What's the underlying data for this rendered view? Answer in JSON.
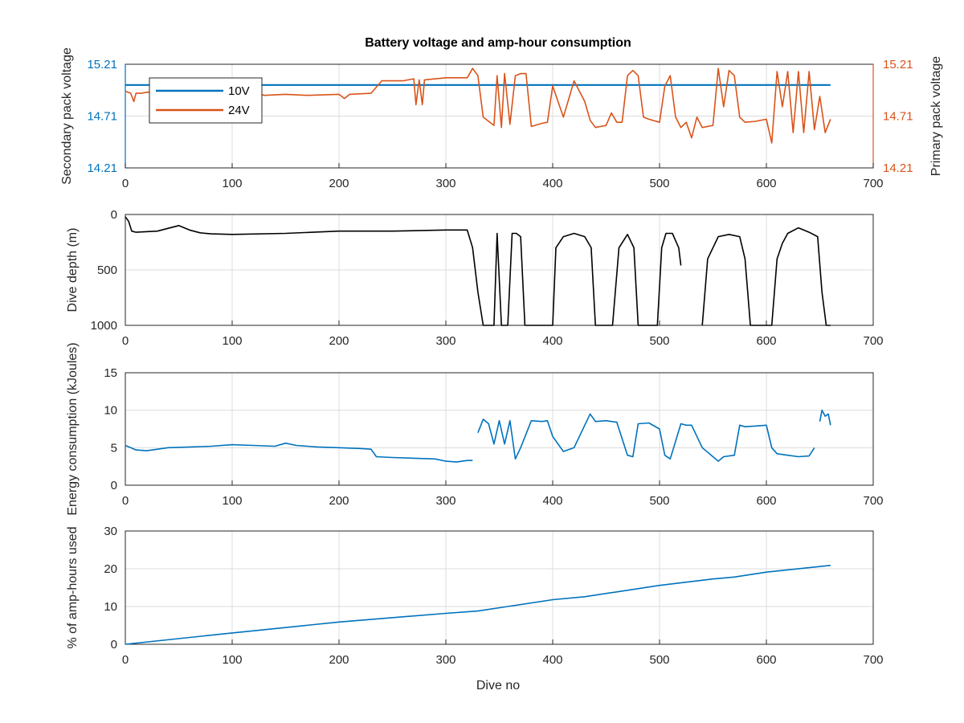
{
  "figure": {
    "title": "Battery voltage and amp-hour consumption",
    "xlabel": "Dive no"
  },
  "colors": {
    "blue": "#0072BD",
    "orange": "#D95319",
    "black": "#000000",
    "axis": "#262626",
    "grid": "#dcdcdc"
  },
  "chart_data": [
    {
      "type": "line",
      "title": "Battery voltage and amp-hour consumption",
      "xlabel": "",
      "ylabel_left": "Secondary pack voltage",
      "ylabel_right": "Primary pack voltage",
      "xlim": [
        0,
        700
      ],
      "ylim": [
        14.21,
        15.21
      ],
      "xticks": [
        0,
        100,
        200,
        300,
        400,
        500,
        600,
        700
      ],
      "yticks": [
        14.21,
        14.71,
        15.21
      ],
      "grid": true,
      "legend": "top-left",
      "series": [
        {
          "name": "10V",
          "axis": "left",
          "color": "#0072BD",
          "x": [
            0,
            660
          ],
          "y": [
            15.01,
            15.01
          ]
        },
        {
          "name": "24V",
          "axis": "right",
          "color": "#D95319",
          "x": [
            0,
            5,
            8,
            10,
            15,
            20,
            40,
            60,
            80,
            100,
            120,
            130,
            150,
            170,
            200,
            205,
            210,
            230,
            240,
            260,
            270,
            272,
            275,
            278,
            280,
            300,
            320,
            325,
            330,
            335,
            345,
            348,
            352,
            355,
            360,
            365,
            370,
            375,
            380,
            390,
            395,
            400,
            410,
            420,
            430,
            435,
            440,
            450,
            455,
            460,
            465,
            470,
            475,
            480,
            485,
            490,
            500,
            505,
            510,
            515,
            520,
            525,
            530,
            535,
            540,
            550,
            555,
            560,
            565,
            570,
            575,
            580,
            590,
            600,
            605,
            610,
            615,
            620,
            625,
            630,
            635,
            640,
            645,
            650,
            655,
            660
          ],
          "y": [
            14.95,
            14.93,
            14.85,
            14.93,
            14.93,
            14.94,
            14.94,
            14.93,
            14.93,
            14.94,
            14.94,
            14.91,
            14.92,
            14.91,
            14.92,
            14.88,
            14.92,
            14.93,
            15.05,
            15.05,
            15.07,
            14.82,
            15.06,
            14.82,
            15.06,
            15.08,
            15.08,
            15.17,
            15.1,
            14.7,
            14.62,
            15.1,
            14.6,
            15.12,
            14.63,
            15.1,
            15.12,
            15.12,
            14.61,
            14.64,
            14.65,
            15.0,
            14.7,
            15.05,
            14.85,
            14.67,
            14.6,
            14.62,
            14.74,
            14.65,
            14.65,
            15.1,
            15.15,
            15.1,
            14.7,
            14.68,
            14.65,
            15.0,
            15.1,
            14.7,
            14.6,
            14.65,
            14.5,
            14.7,
            14.6,
            14.62,
            15.17,
            14.8,
            15.15,
            15.1,
            14.7,
            14.65,
            14.66,
            14.68,
            14.45,
            15.14,
            14.8,
            15.14,
            14.55,
            15.14,
            14.55,
            15.14,
            14.58,
            14.9,
            14.55,
            14.68
          ]
        }
      ]
    },
    {
      "type": "line",
      "title": "",
      "xlabel": "",
      "ylabel": "Dive depth (m)",
      "xlim": [
        0,
        700
      ],
      "ylim": [
        0,
        1000
      ],
      "y_reversed": true,
      "xticks": [
        0,
        100,
        200,
        300,
        400,
        500,
        600,
        700
      ],
      "yticks": [
        0,
        500,
        1000
      ],
      "grid": true,
      "series": [
        {
          "color": "#000000",
          "x": [
            0,
            3,
            6,
            10,
            30,
            50,
            60,
            70,
            80,
            100,
            150,
            200,
            250,
            300,
            320,
            325,
            330,
            335,
            340,
            345,
            348,
            352,
            355,
            358,
            362,
            366,
            370,
            374,
            376,
            395,
            400,
            403,
            410,
            420,
            430,
            436,
            440,
            445,
            450,
            456,
            462,
            470,
            476,
            480,
            484,
            490,
            498,
            502,
            506,
            512,
            518,
            520
          ],
          "y": [
            20,
            60,
            150,
            160,
            150,
            100,
            140,
            165,
            175,
            180,
            170,
            150,
            150,
            140,
            140,
            300,
            700,
            1000,
            1000,
            1000,
            170,
            1000,
            1000,
            1000,
            170,
            170,
            200,
            1000,
            1000,
            1000,
            1000,
            300,
            200,
            170,
            200,
            300,
            1000,
            1000,
            1000,
            1000,
            300,
            180,
            300,
            1000,
            1000,
            1000,
            1000,
            300,
            170,
            170,
            300,
            460
          ]
        },
        {
          "color": "#000000",
          "x": [
            540,
            545,
            555,
            565,
            575,
            580,
            585,
            600,
            605,
            610,
            615,
            620,
            630,
            640,
            648,
            652,
            656,
            660
          ],
          "y": [
            1000,
            400,
            200,
            180,
            200,
            400,
            1000,
            1000,
            1000,
            400,
            260,
            170,
            120,
            160,
            200,
            700,
            1000,
            1000
          ]
        }
      ]
    },
    {
      "type": "line",
      "title": "",
      "xlabel": "",
      "ylabel": "Energy consumption (kJoules)",
      "xlim": [
        0,
        700
      ],
      "ylim": [
        0,
        15
      ],
      "xticks": [
        0,
        100,
        200,
        300,
        400,
        500,
        600,
        700
      ],
      "yticks": [
        0,
        5,
        10,
        15
      ],
      "grid": true,
      "series": [
        {
          "color": "#0072BD",
          "x": [
            0,
            5,
            10,
            20,
            30,
            40,
            60,
            80,
            100,
            120,
            140,
            150,
            160,
            180,
            200,
            220,
            230,
            235,
            250,
            270,
            290,
            300,
            310,
            320,
            325
          ],
          "y": [
            5.3,
            5.0,
            4.7,
            4.6,
            4.8,
            5.0,
            5.1,
            5.2,
            5.4,
            5.3,
            5.2,
            5.6,
            5.3,
            5.1,
            5.0,
            4.9,
            4.8,
            3.8,
            3.7,
            3.6,
            3.5,
            3.2,
            3.1,
            3.3,
            3.3
          ]
        },
        {
          "color": "#0072BD",
          "x": [
            330,
            335,
            340,
            345,
            350,
            355,
            360,
            365,
            370,
            380,
            390,
            395,
            400,
            410,
            420,
            430,
            435,
            440,
            450,
            460,
            470,
            475,
            480,
            490,
            500,
            505,
            510,
            520,
            525,
            530,
            540,
            550,
            555,
            560,
            570,
            575,
            580,
            590,
            600,
            605,
            610,
            620,
            630,
            640,
            645
          ],
          "y": [
            7.0,
            8.8,
            8.2,
            5.5,
            8.6,
            5.5,
            8.6,
            3.5,
            5.0,
            8.6,
            8.5,
            8.6,
            6.5,
            4.5,
            5.0,
            8.0,
            9.5,
            8.5,
            8.6,
            8.4,
            4.0,
            3.8,
            8.2,
            8.3,
            7.5,
            4.0,
            3.5,
            8.2,
            8.0,
            8.0,
            5.0,
            3.8,
            3.2,
            3.8,
            4.0,
            8.0,
            7.8,
            7.9,
            8.0,
            5.0,
            4.2,
            4.0,
            3.8,
            3.9,
            5.0
          ]
        },
        {
          "color": "#0072BD",
          "x": [
            650,
            652,
            655,
            658,
            660
          ],
          "y": [
            8.5,
            10.0,
            9.2,
            9.5,
            8.0
          ]
        }
      ]
    },
    {
      "type": "line",
      "title": "",
      "xlabel": "Dive no",
      "ylabel": "% of amp-hours used",
      "xlim": [
        0,
        700
      ],
      "ylim": [
        0,
        30
      ],
      "xticks": [
        0,
        100,
        200,
        300,
        400,
        500,
        600,
        700
      ],
      "yticks": [
        0,
        10,
        20,
        30
      ],
      "grid": true,
      "series": [
        {
          "color": "#0072BD",
          "x": [
            0,
            100,
            200,
            300,
            330,
            400,
            430,
            500,
            550,
            570,
            600,
            660
          ],
          "y": [
            0,
            3.0,
            5.9,
            8.2,
            8.8,
            11.8,
            12.6,
            15.6,
            17.3,
            17.8,
            19.1,
            20.9
          ]
        }
      ]
    }
  ]
}
